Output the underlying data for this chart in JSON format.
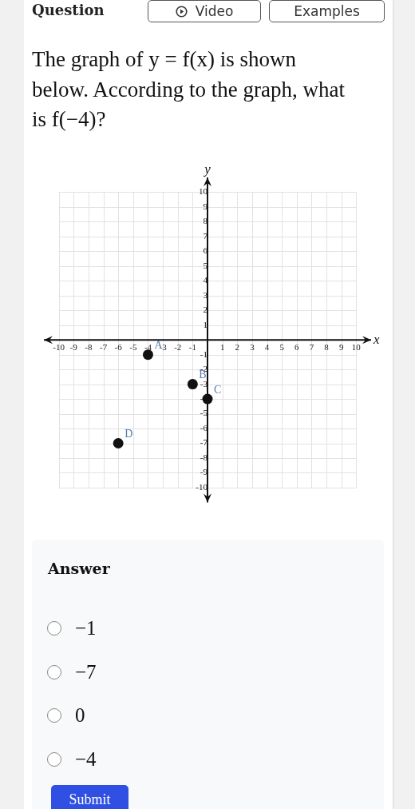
{
  "chart_data": {
    "type": "scatter",
    "title": "The graph of y = f(x) is shown below. According to the graph, what is f(−4)?",
    "xlabel": "x",
    "ylabel": "y",
    "x": [
      -4,
      -1,
      0,
      -6
    ],
    "values": [
      -1,
      -3,
      -4,
      -7
    ],
    "color": "#111111",
    "xlim": [
      -11,
      11
    ],
    "ylim": [
      -11,
      11
    ],
    "xticks": [
      -10,
      -9,
      -8,
      -7,
      -6,
      -5,
      -4,
      -3,
      -2,
      -1,
      1,
      2,
      3,
      4,
      5,
      6,
      7,
      8,
      9,
      10
    ],
    "yticks": [
      -10,
      -9,
      -8,
      -7,
      -6,
      -5,
      -4,
      -3,
      -2,
      -1,
      1,
      2,
      3,
      4,
      5,
      6,
      7,
      8,
      9,
      10
    ],
    "grid": true,
    "marker": "circle",
    "annotations": [
      {
        "text": "A",
        "x": -4,
        "y": -1
      },
      {
        "text": "B",
        "x": -1,
        "y": -3
      },
      {
        "text": "C",
        "x": 0,
        "y": -4
      },
      {
        "text": "D",
        "x": -6,
        "y": -7
      },
      "Question",
      "Video",
      "Examples",
      "Answer",
      "−1",
      "−7",
      "0",
      "−4",
      "Submit"
    ]
  }
}
